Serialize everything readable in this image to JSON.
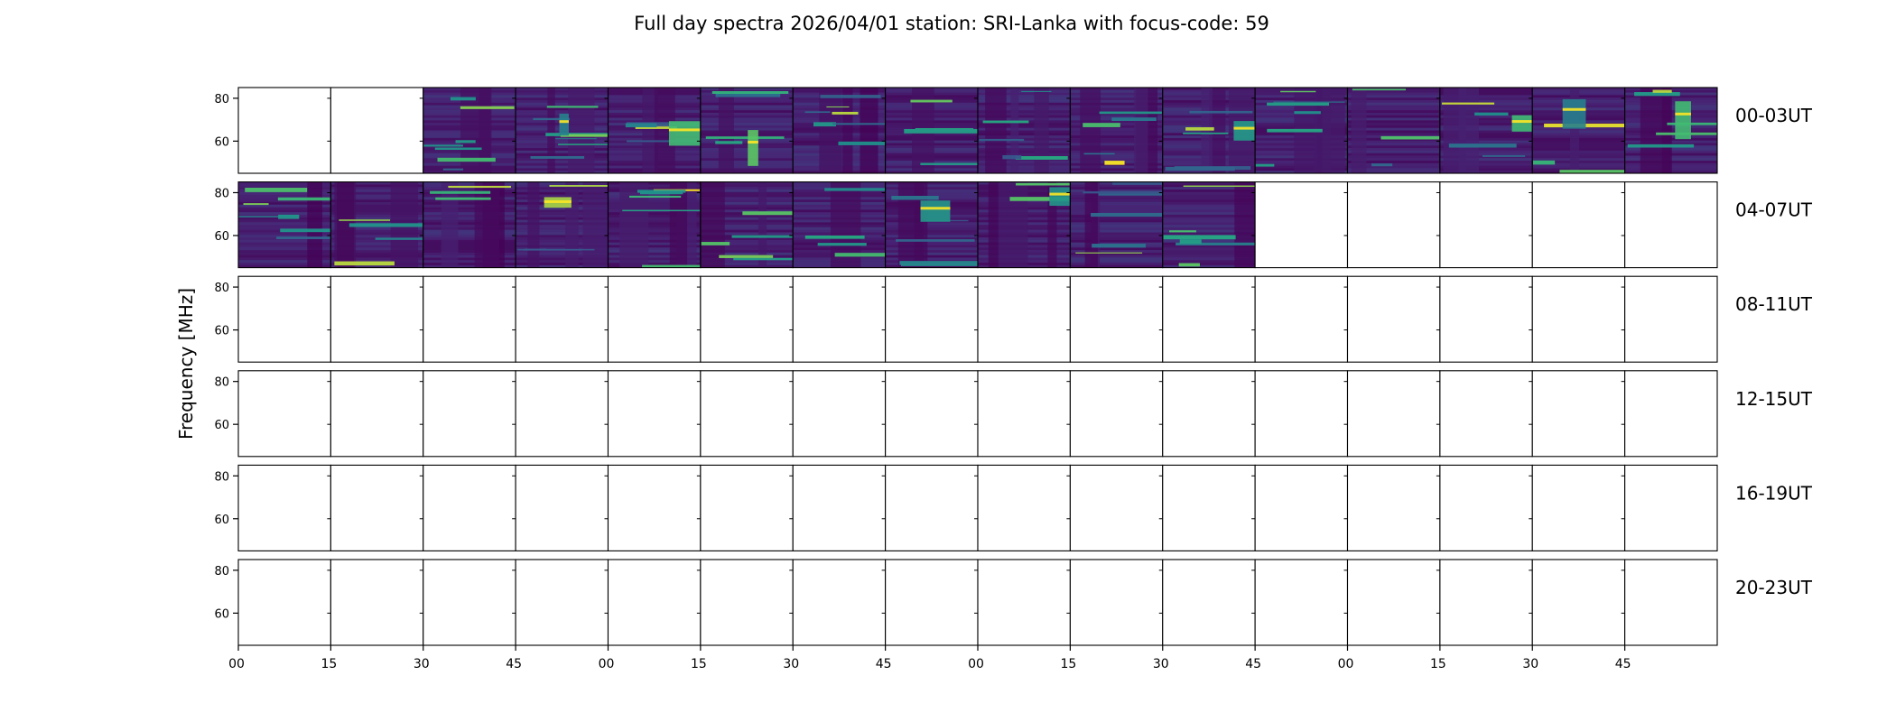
{
  "chart_data": {
    "type": "heatmap",
    "title": "Full day spectra 2026/04/01 station: SRI-Lanka with focus-code: 59",
    "ylabel": "Frequency [MHz]",
    "ylim": [
      45,
      85
    ],
    "yticks": [
      60,
      80
    ],
    "xticks": [
      "00",
      "15",
      "30",
      "45",
      "00",
      "15",
      "30",
      "45",
      "00",
      "15",
      "30",
      "45",
      "00",
      "15",
      "30",
      "45"
    ],
    "colormap": "viridis",
    "colors": {
      "low": "#440154",
      "mid_low": "#3b528b",
      "mid": "#21918c",
      "mid_high": "#5ec962",
      "high": "#fde725",
      "empty": "#ffffff",
      "frame": "#000000"
    },
    "rows": [
      {
        "label": "00-03UT",
        "data_panels": [
          2,
          3,
          4,
          5,
          6,
          7,
          8,
          9,
          10,
          11,
          12,
          13,
          14,
          15
        ]
      },
      {
        "label": "04-07UT",
        "data_panels": [
          0,
          1,
          2,
          3,
          4,
          5,
          6,
          7,
          8,
          9,
          10
        ]
      },
      {
        "label": "08-11UT",
        "data_panels": []
      },
      {
        "label": "12-15UT",
        "data_panels": []
      },
      {
        "label": "16-19UT",
        "data_panels": []
      },
      {
        "label": "20-23UT",
        "data_panels": []
      }
    ]
  }
}
